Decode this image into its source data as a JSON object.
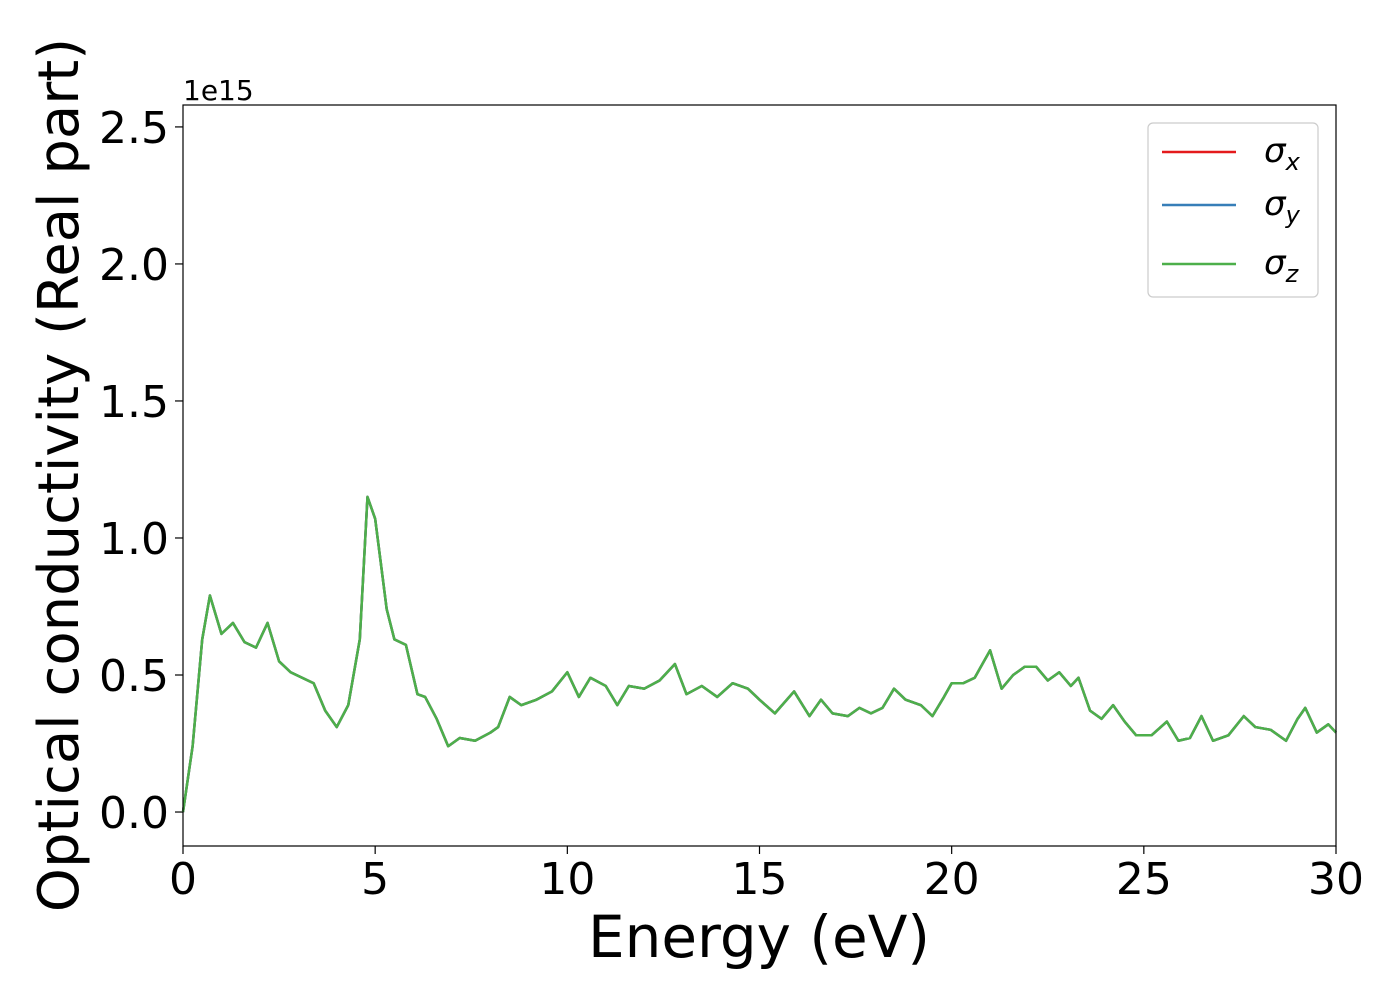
{
  "chart_data": {
    "type": "line",
    "xlabel": "Energy (eV)",
    "ylabel": "Optical conductivity (Real part)",
    "y_offset_label": "1e15",
    "xlim": [
      0,
      30
    ],
    "ylim": [
      -0.124,
      2.58
    ],
    "xticks": [
      0,
      5,
      10,
      15,
      20,
      25,
      30
    ],
    "yticks": [
      {
        "value": 0,
        "label": "0.0"
      },
      0.5,
      {
        "value": 1,
        "label": "1.0"
      },
      1.5,
      {
        "value": 2,
        "label": "2.0"
      },
      2.5
    ],
    "legend": "upper right",
    "x": [
      0,
      0.25,
      0.5,
      0.7,
      1.0,
      1.3,
      1.6,
      1.9,
      2.2,
      2.5,
      2.8,
      3.1,
      3.4,
      3.7,
      4.0,
      4.3,
      4.6,
      4.8,
      5.0,
      5.3,
      5.5,
      5.8,
      6.1,
      6.3,
      6.6,
      6.9,
      7.2,
      7.6,
      8.0,
      8.2,
      8.5,
      8.8,
      9.2,
      9.6,
      10.0,
      10.3,
      10.6,
      11.0,
      11.3,
      11.6,
      12.0,
      12.4,
      12.8,
      13.1,
      13.5,
      13.9,
      14.3,
      14.7,
      15.0,
      15.4,
      15.9,
      16.3,
      16.6,
      16.9,
      17.3,
      17.6,
      17.9,
      18.2,
      18.5,
      18.8,
      19.2,
      19.5,
      19.8,
      20.0,
      20.3,
      20.6,
      20.8,
      21.0,
      21.3,
      21.6,
      21.9,
      22.2,
      22.5,
      22.8,
      23.1,
      23.3,
      23.6,
      23.9,
      24.2,
      24.5,
      24.8,
      25.2,
      25.6,
      25.9,
      26.2,
      26.5,
      26.8,
      27.2,
      27.6,
      27.9,
      28.3,
      28.7,
      29.0,
      29.2,
      29.5,
      29.8,
      30.0
    ],
    "series": [
      {
        "name": "σx",
        "color": "#e41a1c",
        "values": [
          0,
          0.24,
          0.63,
          0.79,
          0.65,
          0.69,
          0.62,
          0.6,
          0.69,
          0.55,
          0.51,
          0.49,
          0.47,
          0.37,
          0.31,
          0.39,
          0.63,
          1.15,
          1.07,
          0.74,
          0.63,
          0.61,
          0.43,
          0.42,
          0.34,
          0.24,
          0.27,
          0.26,
          0.29,
          0.31,
          0.42,
          0.39,
          0.41,
          0.44,
          0.51,
          0.42,
          0.49,
          0.46,
          0.39,
          0.46,
          0.45,
          0.48,
          0.54,
          0.43,
          0.46,
          0.42,
          0.47,
          0.45,
          0.41,
          0.36,
          0.44,
          0.35,
          0.41,
          0.36,
          0.35,
          0.38,
          0.36,
          0.38,
          0.45,
          0.41,
          0.39,
          0.35,
          0.42,
          0.47,
          0.47,
          0.49,
          0.54,
          0.59,
          0.45,
          0.5,
          0.53,
          0.53,
          0.48,
          0.51,
          0.46,
          0.49,
          0.37,
          0.34,
          0.39,
          0.33,
          0.28,
          0.28,
          0.33,
          0.26,
          0.27,
          0.35,
          0.26,
          0.28,
          0.35,
          0.31,
          0.3,
          0.26,
          0.34,
          0.38,
          0.29,
          0.32,
          0.29
        ]
      },
      {
        "name": "σy",
        "color": "#377eb8",
        "values": [
          0,
          0.24,
          0.63,
          0.79,
          0.65,
          0.69,
          0.62,
          0.6,
          0.69,
          0.55,
          0.51,
          0.49,
          0.47,
          0.37,
          0.31,
          0.39,
          0.63,
          1.15,
          1.07,
          0.74,
          0.63,
          0.61,
          0.43,
          0.42,
          0.34,
          0.24,
          0.27,
          0.26,
          0.29,
          0.31,
          0.42,
          0.39,
          0.41,
          0.44,
          0.51,
          0.42,
          0.49,
          0.46,
          0.39,
          0.46,
          0.45,
          0.48,
          0.54,
          0.43,
          0.46,
          0.42,
          0.47,
          0.45,
          0.41,
          0.36,
          0.44,
          0.35,
          0.41,
          0.36,
          0.35,
          0.38,
          0.36,
          0.38,
          0.45,
          0.41,
          0.39,
          0.35,
          0.42,
          0.47,
          0.47,
          0.49,
          0.54,
          0.59,
          0.45,
          0.5,
          0.53,
          0.53,
          0.48,
          0.51,
          0.46,
          0.49,
          0.37,
          0.34,
          0.39,
          0.33,
          0.28,
          0.28,
          0.33,
          0.26,
          0.27,
          0.35,
          0.26,
          0.28,
          0.35,
          0.31,
          0.3,
          0.26,
          0.34,
          0.38,
          0.29,
          0.32,
          0.29
        ]
      },
      {
        "name": "σz",
        "color": "#4daf4a",
        "values": [
          0,
          0.24,
          0.63,
          0.79,
          0.65,
          0.69,
          0.62,
          0.6,
          0.69,
          0.55,
          0.51,
          0.49,
          0.47,
          0.37,
          0.31,
          0.39,
          0.63,
          1.15,
          1.07,
          0.74,
          0.63,
          0.61,
          0.43,
          0.42,
          0.34,
          0.24,
          0.27,
          0.26,
          0.29,
          0.31,
          0.42,
          0.39,
          0.41,
          0.44,
          0.51,
          0.42,
          0.49,
          0.46,
          0.39,
          0.46,
          0.45,
          0.48,
          0.54,
          0.43,
          0.46,
          0.42,
          0.47,
          0.45,
          0.41,
          0.36,
          0.44,
          0.35,
          0.41,
          0.36,
          0.35,
          0.38,
          0.36,
          0.38,
          0.45,
          0.41,
          0.39,
          0.35,
          0.42,
          0.47,
          0.47,
          0.49,
          0.54,
          0.59,
          0.45,
          0.5,
          0.53,
          0.53,
          0.48,
          0.51,
          0.46,
          0.49,
          0.37,
          0.34,
          0.39,
          0.33,
          0.28,
          0.28,
          0.33,
          0.26,
          0.27,
          0.35,
          0.26,
          0.28,
          0.35,
          0.31,
          0.3,
          0.26,
          0.34,
          0.38,
          0.29,
          0.32,
          0.29
        ]
      }
    ]
  }
}
